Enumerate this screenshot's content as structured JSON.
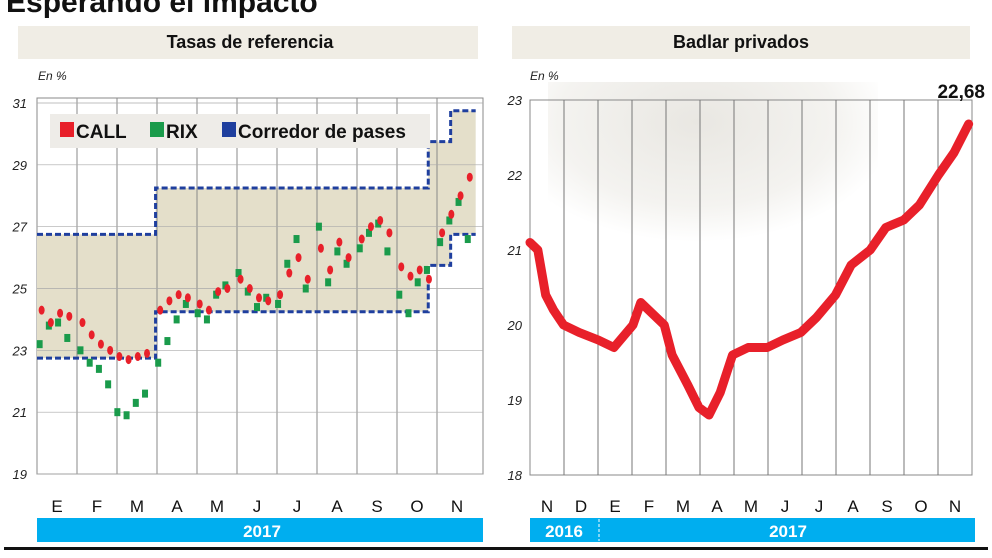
{
  "title": "Esperando el impacto",
  "colors": {
    "call": "#e8202a",
    "rix": "#1a9b4b",
    "corridor": "#1f3f9e",
    "corridor_fill": "#e4dfca",
    "banner": "#f0ede5",
    "year_bar": "#00aeef",
    "badlar": "#e8202a"
  },
  "chart_data": [
    {
      "type": "scatter",
      "title": "Tasas de referencia",
      "unit_label": "En %",
      "ylim": [
        19,
        31
      ],
      "yticks": [
        19,
        21,
        23,
        25,
        27,
        29,
        31
      ],
      "xlim": [
        "2017-01-01",
        "2017-11-30"
      ],
      "month_labels": [
        "E",
        "F",
        "M",
        "A",
        "M",
        "J",
        "J",
        "A",
        "S",
        "O",
        "N"
      ],
      "year_labels": [
        "2017"
      ],
      "grid": true,
      "legend": {
        "placement": "top-left",
        "entries": [
          "CALL",
          "RIX",
          "Corredor de pases"
        ]
      },
      "x": [
        "2017-01-03",
        "2017-01-10",
        "2017-01-17",
        "2017-01-24",
        "2017-02-03",
        "2017-02-10",
        "2017-02-17",
        "2017-02-24",
        "2017-03-03",
        "2017-03-10",
        "2017-03-17",
        "2017-03-24",
        "2017-04-03",
        "2017-04-10",
        "2017-04-17",
        "2017-04-24",
        "2017-05-03",
        "2017-05-10",
        "2017-05-17",
        "2017-05-24",
        "2017-06-03",
        "2017-06-10",
        "2017-06-17",
        "2017-06-24",
        "2017-07-03",
        "2017-07-10",
        "2017-07-17",
        "2017-07-24",
        "2017-08-03",
        "2017-08-10",
        "2017-08-17",
        "2017-08-24",
        "2017-09-03",
        "2017-09-10",
        "2017-09-17",
        "2017-09-24",
        "2017-10-03",
        "2017-10-10",
        "2017-10-17",
        "2017-10-24",
        "2017-11-03",
        "2017-11-10",
        "2017-11-17",
        "2017-11-24"
      ],
      "series": [
        {
          "name": "CALL",
          "values": [
            24.3,
            23.9,
            24.2,
            24.1,
            23.9,
            23.5,
            23.2,
            23.0,
            22.8,
            22.7,
            22.8,
            22.9,
            24.3,
            24.6,
            24.8,
            24.7,
            24.5,
            24.3,
            24.9,
            25.0,
            25.3,
            25.0,
            24.7,
            24.6,
            24.8,
            25.5,
            26.0,
            25.3,
            26.3,
            25.6,
            26.5,
            26.0,
            26.6,
            27.0,
            27.2,
            26.8,
            25.7,
            25.4,
            25.6,
            25.3,
            26.8,
            27.4,
            28.0,
            28.6
          ]
        },
        {
          "name": "RIX",
          "values": [
            23.2,
            23.8,
            23.9,
            23.4,
            23.0,
            22.6,
            22.4,
            21.9,
            21.0,
            20.9,
            21.3,
            21.6,
            22.6,
            23.3,
            24.0,
            24.5,
            24.2,
            24.0,
            24.8,
            25.1,
            25.5,
            24.9,
            24.4,
            24.7,
            24.5,
            25.8,
            26.6,
            25.0,
            27.0,
            25.2,
            26.2,
            25.8,
            26.3,
            26.8,
            27.1,
            26.2,
            24.8,
            24.2,
            25.2,
            25.6,
            26.5,
            27.2,
            27.8,
            26.6
          ]
        }
      ],
      "corridor": {
        "name": "Corredor de pases",
        "steps": [
          {
            "from": "2017-01-01",
            "lower": 22.75,
            "upper": 26.75
          },
          {
            "from": "2017-04-01",
            "lower": 24.25,
            "upper": 28.25
          },
          {
            "from": "2017-10-25",
            "lower": 25.75,
            "upper": 29.75
          },
          {
            "from": "2017-11-11",
            "lower": 26.75,
            "upper": 30.75
          }
        ],
        "end": "2017-11-30"
      }
    },
    {
      "type": "line",
      "title": "Badlar privados",
      "unit_label": "En %",
      "ylim": [
        18,
        23
      ],
      "yticks": [
        18,
        19,
        20,
        21,
        22,
        23
      ],
      "xlim": [
        "2016-11-01",
        "2017-11-30"
      ],
      "month_labels": [
        "N",
        "D",
        "E",
        "F",
        "M",
        "A",
        "M",
        "J",
        "J",
        "A",
        "S",
        "O",
        "N"
      ],
      "year_labels": [
        "2016",
        "2017"
      ],
      "grid": true,
      "annotation": "22,68",
      "x": [
        "2016-11-01",
        "2016-11-08",
        "2016-11-15",
        "2016-11-22",
        "2016-12-01",
        "2016-12-15",
        "2017-01-01",
        "2017-01-15",
        "2017-02-01",
        "2017-02-08",
        "2017-02-15",
        "2017-03-01",
        "2017-03-08",
        "2017-03-22",
        "2017-04-01",
        "2017-04-10",
        "2017-04-20",
        "2017-05-01",
        "2017-05-15",
        "2017-06-01",
        "2017-06-15",
        "2017-07-01",
        "2017-07-15",
        "2017-08-01",
        "2017-08-15",
        "2017-09-01",
        "2017-09-15",
        "2017-10-01",
        "2017-10-15",
        "2017-11-01",
        "2017-11-15",
        "2017-11-28"
      ],
      "values": [
        21.1,
        21.0,
        20.4,
        20.2,
        20.0,
        19.9,
        19.8,
        19.7,
        20.0,
        20.3,
        20.2,
        20.0,
        19.6,
        19.2,
        18.9,
        18.8,
        19.1,
        19.6,
        19.7,
        19.7,
        19.8,
        19.9,
        20.1,
        20.4,
        20.8,
        21.0,
        21.3,
        21.4,
        21.6,
        22.0,
        22.3,
        22.68
      ]
    }
  ]
}
